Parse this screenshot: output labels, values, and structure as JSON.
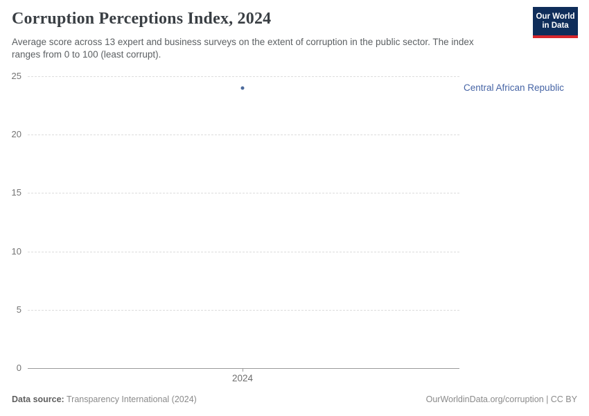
{
  "header": {
    "title": "Corruption Perceptions Index, 2024",
    "subtitle": "Average score across 13 expert and business surveys on the extent of corruption in the public sector. The index ranges from 0 to 100 (least corrupt).",
    "logo": {
      "line1": "Our World",
      "line2": "in Data"
    }
  },
  "chart_data": {
    "type": "scatter",
    "title": "Corruption Perceptions Index, 2024",
    "x": [
      2024
    ],
    "xticks": [
      "2024"
    ],
    "series": [
      {
        "name": "Central African Republic",
        "values": [
          24
        ]
      }
    ],
    "xlabel": "",
    "ylabel": "",
    "ylim": [
      0,
      25
    ],
    "yticks": [
      25,
      20,
      15,
      10,
      5,
      0
    ],
    "grid": "horizontal dashed gridlines, solid zero baseline",
    "legend_position": "entity label right of plot, aligned with data point"
  },
  "footer": {
    "datasource_label": "Data source:",
    "datasource_value": " Transparency International (2024)",
    "license": "OurWorldinData.org/corruption | CC BY"
  },
  "colors": {
    "accent": "#4c6a9c",
    "entity_label": "#4664a5",
    "logo_bg": "#0f2d5a",
    "logo_red": "#d8262c"
  }
}
